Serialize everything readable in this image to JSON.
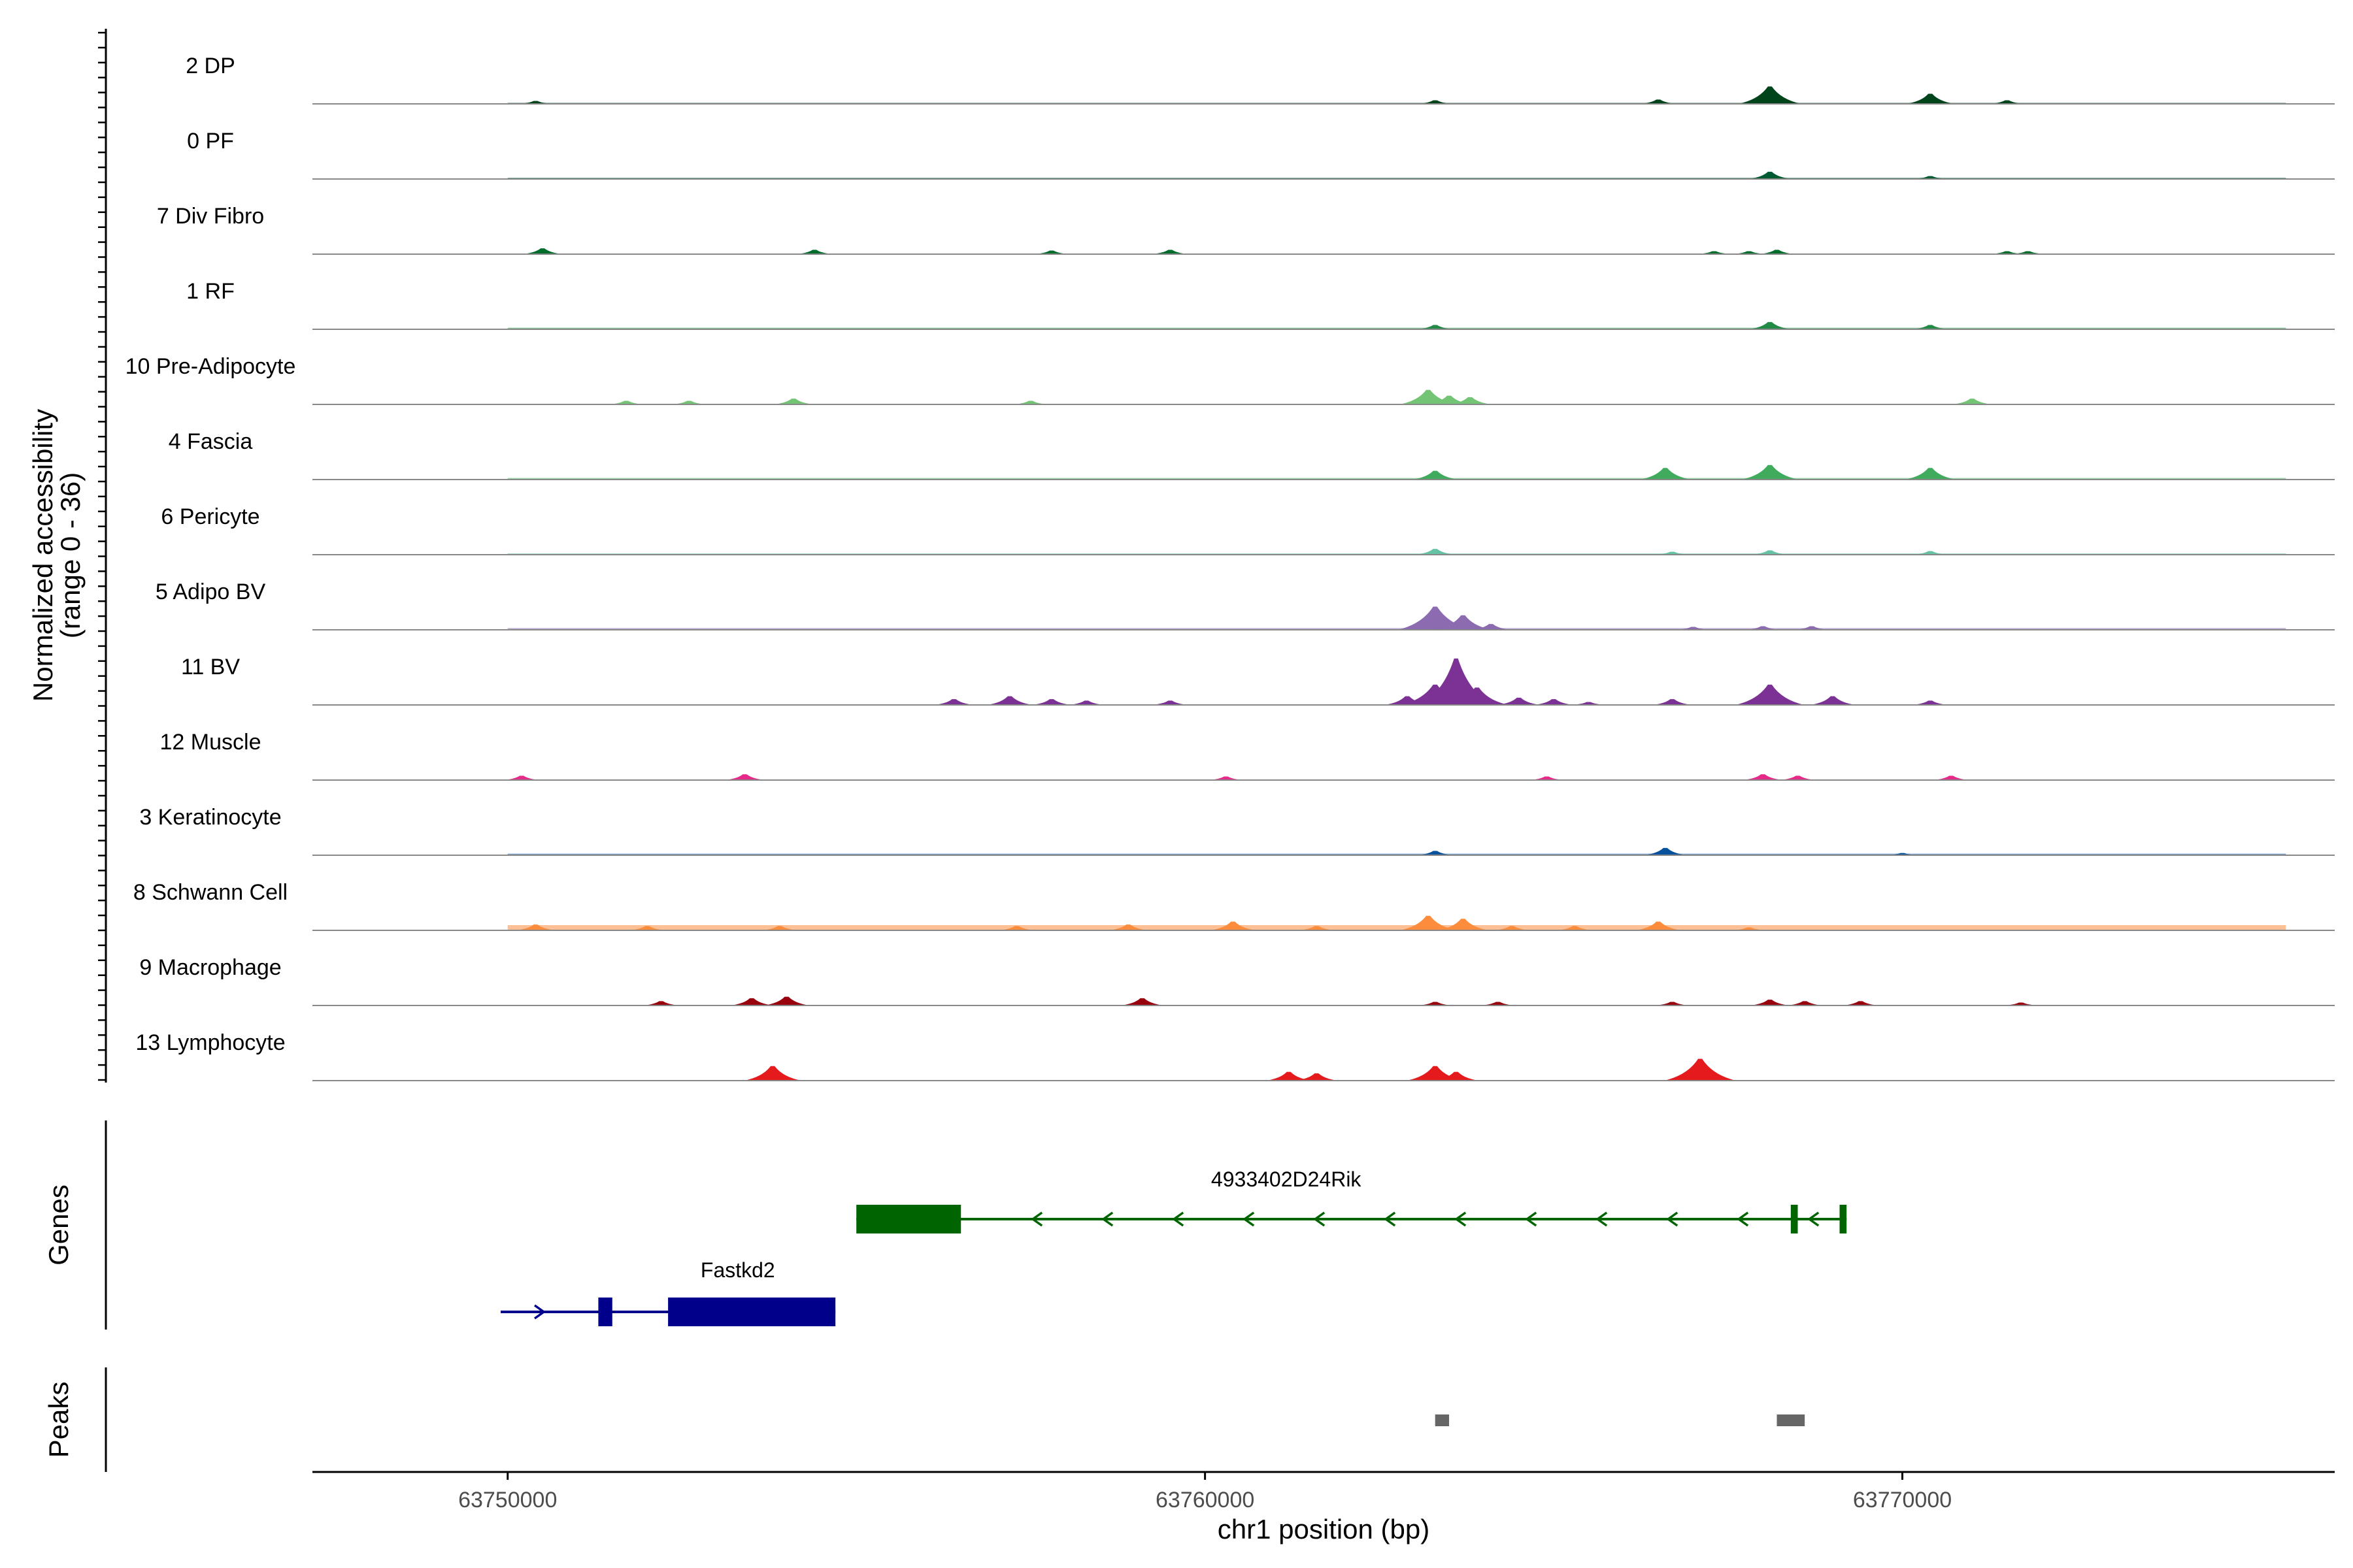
{
  "chart_data": {
    "type": "area",
    "chromosome": "chr1",
    "xlabel": "chr1 position (bp)",
    "xlim": [
      63747200,
      63776200
    ],
    "x_ticks": [
      63750000,
      63760000,
      63770000
    ],
    "x_tick_labels": [
      "63750000",
      "63760000",
      "63770000"
    ],
    "ylabel": "Normalized accessibility",
    "ylabel_range": "(range 0 - 36)",
    "ylim": [
      0,
      36
    ],
    "genes_label": "Genes",
    "peaks_label": "Peaks",
    "tracks": [
      {
        "name": "2 DP",
        "color": "#00441b",
        "baseline": 0.25,
        "peaks": [
          [
            63750400,
            2
          ],
          [
            63763300,
            2.5
          ],
          [
            63766500,
            3
          ],
          [
            63768100,
            12
          ],
          [
            63770400,
            7
          ],
          [
            63771500,
            2.5
          ]
        ]
      },
      {
        "name": "0 PF",
        "color": "#005a32",
        "baseline": 0.3,
        "peaks": [
          [
            63768100,
            5
          ],
          [
            63770400,
            2
          ]
        ]
      },
      {
        "name": "7 Div Fibro",
        "color": "#006d2c",
        "baseline": 0,
        "peaks": [
          [
            63750500,
            4
          ],
          [
            63754400,
            3
          ],
          [
            63757800,
            2.5
          ],
          [
            63759500,
            3
          ],
          [
            63767300,
            2
          ],
          [
            63767800,
            2
          ],
          [
            63768200,
            3
          ],
          [
            63771500,
            2
          ],
          [
            63771800,
            2
          ]
        ]
      },
      {
        "name": "1 RF",
        "color": "#238b45",
        "baseline": 0.35,
        "peaks": [
          [
            63763300,
            3
          ],
          [
            63768100,
            5
          ],
          [
            63770400,
            3
          ]
        ]
      },
      {
        "name": "10 Pre-Adipocyte",
        "color": "#74c476",
        "baseline": 0,
        "peaks": [
          [
            63751700,
            2.5
          ],
          [
            63752600,
            2.5
          ],
          [
            63754100,
            4
          ],
          [
            63757500,
            2.5
          ],
          [
            63763200,
            10
          ],
          [
            63763500,
            6
          ],
          [
            63763800,
            5
          ],
          [
            63771000,
            4
          ]
        ]
      },
      {
        "name": "4 Fascia",
        "color": "#41ab5d",
        "baseline": 0.35,
        "peaks": [
          [
            63763300,
            6
          ],
          [
            63766600,
            8
          ],
          [
            63768100,
            10
          ],
          [
            63770400,
            8
          ]
        ]
      },
      {
        "name": "6 Pericyte",
        "color": "#66c2a4",
        "baseline": 0.3,
        "peaks": [
          [
            63763300,
            4
          ],
          [
            63766700,
            2
          ],
          [
            63768100,
            3
          ],
          [
            63770400,
            2.5
          ]
        ]
      },
      {
        "name": "5 Adipo BV",
        "color": "#8c6bb1",
        "baseline": 0.4,
        "peaks": [
          [
            63763300,
            16
          ],
          [
            63763700,
            10
          ],
          [
            63764100,
            4
          ],
          [
            63767000,
            2
          ],
          [
            63768000,
            2.5
          ],
          [
            63768700,
            2.5
          ]
        ]
      },
      {
        "name": "11 BV",
        "color": "#7b3294",
        "baseline": 0,
        "peaks": [
          [
            63756400,
            4
          ],
          [
            63757200,
            6
          ],
          [
            63757800,
            4
          ],
          [
            63758300,
            3
          ],
          [
            63759500,
            3
          ],
          [
            63762900,
            6
          ],
          [
            63763300,
            14
          ],
          [
            63763600,
            32
          ],
          [
            63763900,
            12
          ],
          [
            63764500,
            5
          ],
          [
            63765000,
            4
          ],
          [
            63765500,
            2
          ],
          [
            63766700,
            4
          ],
          [
            63768100,
            14
          ],
          [
            63769000,
            6
          ],
          [
            63770400,
            3
          ]
        ]
      },
      {
        "name": "12 Muscle",
        "color": "#e7298a",
        "baseline": 0,
        "peaks": [
          [
            63750200,
            3
          ],
          [
            63753400,
            4
          ],
          [
            63760300,
            2.5
          ],
          [
            63764900,
            2.5
          ],
          [
            63768000,
            4
          ],
          [
            63768500,
            3
          ],
          [
            63770700,
            3
          ]
        ]
      },
      {
        "name": "3 Keratinocyte",
        "color": "#08519c",
        "baseline": 0.35,
        "peaks": [
          [
            63763300,
            3
          ],
          [
            63766600,
            5
          ],
          [
            63770000,
            1.5
          ]
        ]
      },
      {
        "name": "8 Schwann Cell",
        "color": "#fd8d3c",
        "baseline": 1.2,
        "peaks": [
          [
            63750400,
            4
          ],
          [
            63752000,
            3
          ],
          [
            63753900,
            3
          ],
          [
            63757300,
            3
          ],
          [
            63758900,
            4
          ],
          [
            63760400,
            6
          ],
          [
            63761600,
            3
          ],
          [
            63763200,
            10
          ],
          [
            63763700,
            8
          ],
          [
            63764400,
            3
          ],
          [
            63765300,
            3
          ],
          [
            63766500,
            6
          ],
          [
            63767800,
            2
          ]
        ]
      },
      {
        "name": "9 Macrophage",
        "color": "#99000d",
        "baseline": 0,
        "peaks": [
          [
            63752200,
            3
          ],
          [
            63753500,
            5
          ],
          [
            63754000,
            6
          ],
          [
            63759100,
            5
          ],
          [
            63763300,
            2.5
          ],
          [
            63764200,
            2.5
          ],
          [
            63766700,
            2.5
          ],
          [
            63768100,
            4
          ],
          [
            63768600,
            3
          ],
          [
            63769400,
            3
          ],
          [
            63771700,
            2
          ]
        ]
      },
      {
        "name": "13 Lymphocyte",
        "color": "#e41a1c",
        "baseline": 0,
        "peaks": [
          [
            63753800,
            10
          ],
          [
            63761200,
            6
          ],
          [
            63761600,
            5
          ],
          [
            63763300,
            10
          ],
          [
            63763600,
            6
          ],
          [
            63767100,
            15
          ]
        ]
      }
    ],
    "genes": [
      {
        "name": "4933402D24Rik",
        "color": "#006400",
        "strand": "-",
        "start": 63755000,
        "end": 63769200,
        "exons": [
          [
            63755000,
            63756500
          ],
          [
            63768400,
            63768500
          ],
          [
            63769100,
            63769200
          ]
        ]
      },
      {
        "name": "Fastkd2",
        "color": "#00008b",
        "strand": "+",
        "start": 63749900,
        "end": 63754700,
        "exons": [
          [
            63751300,
            63751500
          ],
          [
            63752300,
            63754700
          ]
        ]
      }
    ],
    "peak_regions": [
      [
        63763300,
        63763500
      ],
      [
        63768200,
        63768600
      ]
    ]
  }
}
